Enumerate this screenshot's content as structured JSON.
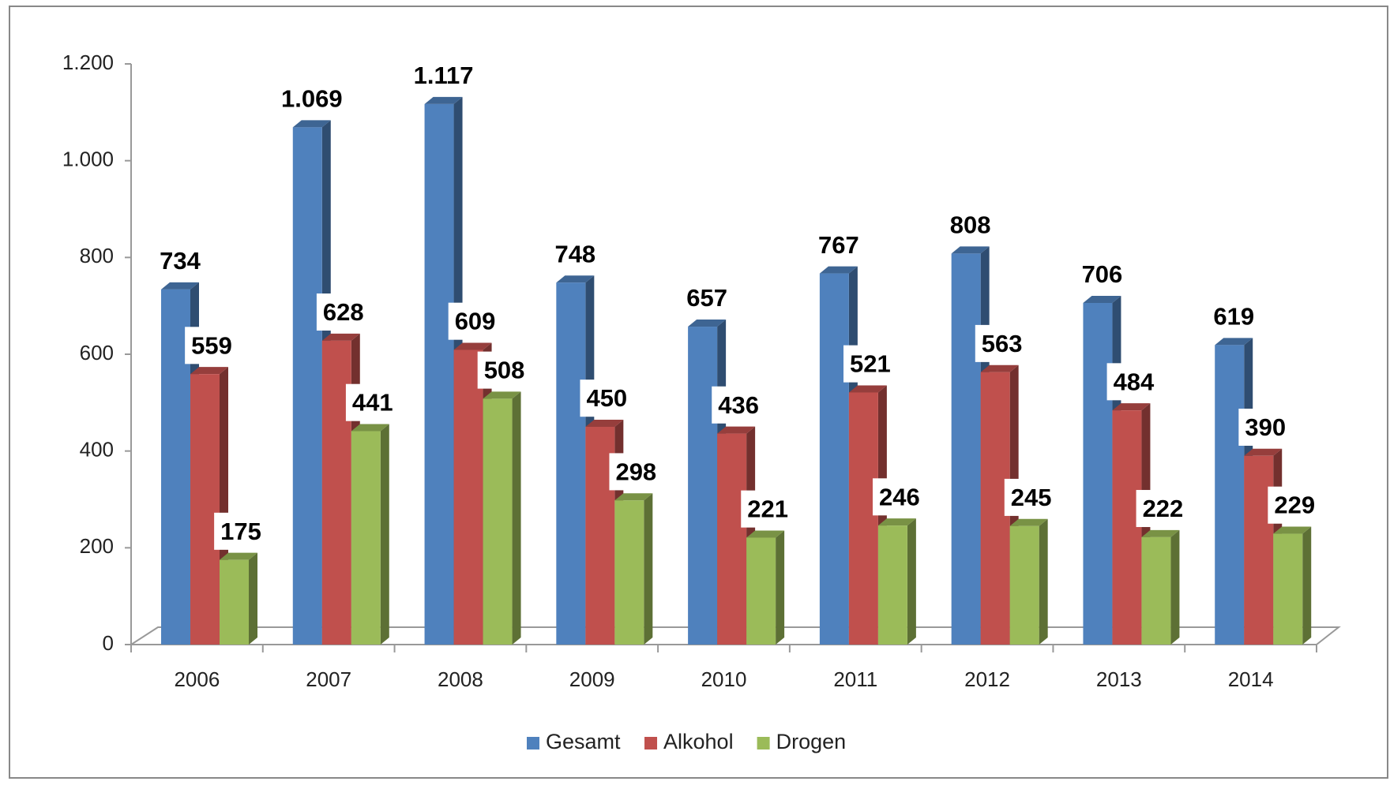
{
  "chart_data": {
    "type": "bar3d",
    "categories": [
      "2006",
      "2007",
      "2008",
      "2009",
      "2010",
      "2011",
      "2012",
      "2013",
      "2014"
    ],
    "series": [
      {
        "name": "Gesamt",
        "color": "#4f81bd",
        "values": [
          734,
          1069,
          1117,
          748,
          657,
          767,
          808,
          706,
          619
        ],
        "value_labels": [
          "734",
          "1.069",
          "1.117",
          "748",
          "657",
          "767",
          "808",
          "706",
          "619"
        ]
      },
      {
        "name": "Alkohol",
        "color": "#c0504d",
        "values": [
          559,
          628,
          609,
          450,
          436,
          521,
          563,
          484,
          390
        ]
      },
      {
        "name": "Drogen",
        "color": "#9bbb59",
        "values": [
          175,
          441,
          508,
          298,
          221,
          246,
          245,
          222,
          229
        ]
      }
    ],
    "ylim": [
      0,
      1200
    ],
    "yticks": [
      0,
      200,
      400,
      600,
      800,
      {
        "value": 1000,
        "label": "1.000"
      },
      {
        "value": 1200,
        "label": "1.200"
      }
    ],
    "legend": "bottom"
  }
}
